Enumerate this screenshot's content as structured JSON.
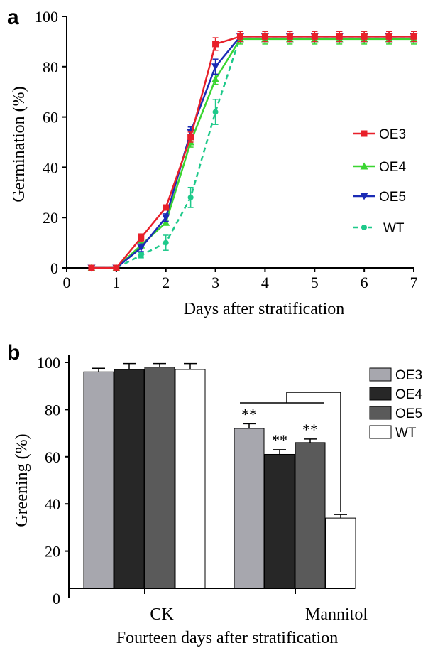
{
  "chart_data": [
    {
      "type": "line",
      "panel_label": "a",
      "xlabel": "Days after stratification",
      "ylabel": "Germination (%)",
      "xlim": [
        0,
        7
      ],
      "ylim": [
        0,
        100
      ],
      "xticks": [
        "0",
        "1",
        "2",
        "3",
        "4",
        "5",
        "6",
        "7"
      ],
      "yticks": [
        "0",
        "20",
        "40",
        "60",
        "80",
        "100"
      ],
      "legend_position": "right",
      "x": [
        0.5,
        1,
        1.5,
        2,
        2.5,
        3,
        3.5,
        4,
        4.5,
        5,
        5.5,
        6,
        6.5,
        7
      ],
      "series": [
        {
          "name": "OE3",
          "color": "#e8202a",
          "marker": "square",
          "dashed": false,
          "values": [
            0,
            0,
            12,
            24,
            52,
            89,
            92,
            92,
            92,
            92,
            92,
            92,
            92,
            92
          ],
          "errors": [
            0,
            0,
            1.5,
            1,
            2,
            2.5,
            2,
            2,
            2,
            2,
            2,
            2,
            2,
            2
          ]
        },
        {
          "name": "OE4",
          "color": "#3ad531",
          "marker": "triangle-up",
          "dashed": false,
          "values": [
            0,
            0,
            9,
            18,
            50,
            75,
            91,
            91,
            91,
            91,
            91,
            91,
            91,
            91
          ],
          "errors": [
            0,
            0,
            1,
            1,
            2,
            2,
            2,
            2,
            2,
            2,
            2,
            2,
            2,
            2
          ]
        },
        {
          "name": "OE5",
          "color": "#1a2bb5",
          "marker": "triangle-down",
          "dashed": false,
          "values": [
            0,
            0,
            8,
            20,
            54,
            80,
            92,
            92,
            92,
            92,
            92,
            92,
            92,
            92
          ],
          "errors": [
            0,
            0,
            1.5,
            1.5,
            2,
            3,
            2,
            2,
            2,
            2,
            2,
            2,
            2,
            2
          ]
        },
        {
          "name": "WT",
          "color": "#1ec98a",
          "marker": "circle",
          "dashed": true,
          "values": [
            0,
            0,
            5,
            10,
            28,
            62,
            92,
            92,
            92,
            92,
            92,
            92,
            92,
            92
          ],
          "errors": [
            0,
            0,
            1,
            3,
            4,
            5,
            2,
            2,
            2,
            2,
            2,
            2,
            2,
            2
          ]
        }
      ]
    },
    {
      "type": "bar",
      "panel_label": "b",
      "xlabel": "Fourteen days after stratification",
      "ylabel": "Greening (%)",
      "ylim": [
        0,
        100
      ],
      "yticks": [
        "0",
        "20",
        "40",
        "60",
        "80",
        "100"
      ],
      "categories": [
        "CK",
        "Mannitol"
      ],
      "legend_position": "right",
      "series": [
        {
          "name": "OE3",
          "color": "#a7a7ae",
          "values": [
            96,
            72
          ],
          "errors": [
            1.5,
            2
          ]
        },
        {
          "name": "OE4",
          "color": "#272727",
          "values": [
            97,
            61
          ],
          "errors": [
            2.5,
            2
          ]
        },
        {
          "name": "OE5",
          "color": "#5a5a5a",
          "values": [
            98,
            66
          ],
          "errors": [
            1.5,
            1.5
          ]
        },
        {
          "name": "WT",
          "color": "#ffffff",
          "values": [
            97,
            34
          ],
          "errors": [
            2.5,
            1.5
          ]
        }
      ],
      "annotations": [
        {
          "category": "Mannitol",
          "series": "OE3",
          "text": "**"
        },
        {
          "category": "Mannitol",
          "series": "OE4",
          "text": "**"
        },
        {
          "category": "Mannitol",
          "series": "OE5",
          "text": "**"
        }
      ]
    }
  ]
}
